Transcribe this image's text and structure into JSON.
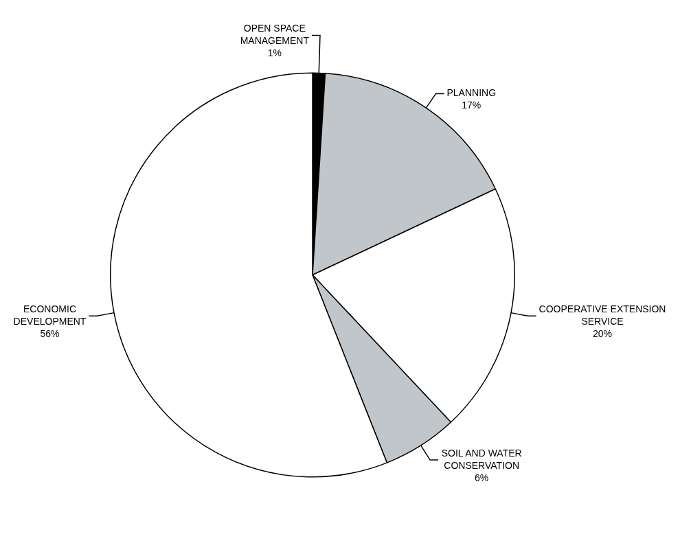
{
  "chart_data": {
    "type": "pie",
    "categories": [
      "OPEN SPACE MANAGEMENT",
      "PLANNING",
      "COOPERATIVE EXTENSION SERVICE",
      "SOIL AND WATER CONSERVATION",
      "ECONOMIC DEVELOPMENT"
    ],
    "values": [
      1,
      17,
      20,
      6,
      56
    ],
    "colors": [
      "#000000",
      "#c0c6c9",
      "#ffffff",
      "#c0c6c9",
      "#ffffff"
    ],
    "value_labels": [
      "1%",
      "17%",
      "20%",
      "6%",
      "56%"
    ],
    "legend": false
  }
}
